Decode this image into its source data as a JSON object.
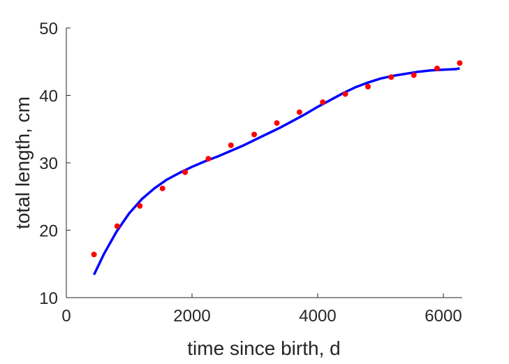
{
  "chart_data": {
    "type": "scatter",
    "xlabel": "time since birth, d",
    "ylabel": "total length, cm",
    "xlim": [
      0,
      6300
    ],
    "ylim": [
      10,
      50
    ],
    "xticks": [
      0,
      2000,
      4000,
      6000
    ],
    "yticks": [
      10,
      20,
      30,
      40,
      50
    ],
    "xtick_labels": [
      "0",
      "2000",
      "4000",
      "6000"
    ],
    "ytick_labels": [
      "10",
      "20",
      "30",
      "40",
      "50"
    ],
    "grid": false,
    "series": [
      {
        "kind": "points",
        "color": "#ff0000",
        "x": [
          440,
          810,
          1170,
          1530,
          1890,
          2260,
          2620,
          2990,
          3350,
          3710,
          4080,
          4440,
          4800,
          5170,
          5530,
          5900,
          6260
        ],
        "y": [
          16.4,
          20.6,
          23.6,
          26.2,
          28.6,
          30.6,
          32.6,
          34.2,
          35.9,
          37.5,
          39.0,
          40.2,
          41.3,
          42.7,
          43.0,
          44.0,
          44.8
        ]
      },
      {
        "kind": "line",
        "color": "#0000ff",
        "x": [
          440,
          600,
          800,
          1000,
          1200,
          1400,
          1600,
          1800,
          2000,
          2200,
          2400,
          2600,
          2800,
          3000,
          3200,
          3400,
          3600,
          3800,
          4000,
          4200,
          4400,
          4600,
          4800,
          5000,
          5200,
          5400,
          5600,
          5800,
          6000,
          6200,
          6260
        ],
        "y": [
          13.4,
          16.5,
          19.8,
          22.5,
          24.6,
          26.2,
          27.5,
          28.5,
          29.4,
          30.2,
          30.9,
          31.7,
          32.5,
          33.4,
          34.3,
          35.2,
          36.2,
          37.2,
          38.3,
          39.3,
          40.3,
          41.2,
          41.9,
          42.5,
          42.9,
          43.2,
          43.5,
          43.7,
          43.8,
          43.9,
          44.0
        ]
      }
    ]
  }
}
